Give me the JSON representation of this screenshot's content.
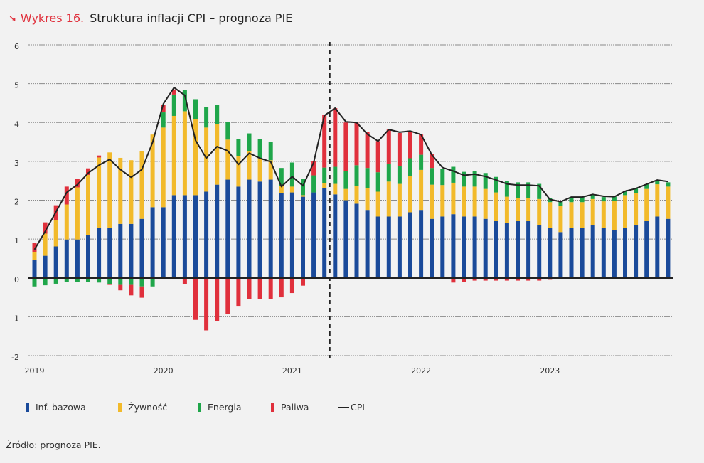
{
  "header": {
    "arrow_icon": "↘",
    "figure_number": "Wykres 16.",
    "title": "Struktura inflacji CPI – prognoza PIE"
  },
  "footer": {
    "source": "Źródło: prognoza PIE."
  },
  "colors": {
    "inf_bazowa": "#1a4a9a",
    "zywnosc": "#f2ba2b",
    "energia": "#1fa64a",
    "paliwa": "#e0303c",
    "cpi": "#222222",
    "accent": "#e0303c"
  },
  "legend": [
    {
      "key": "inf_bazowa",
      "label": "Inf. bazowa",
      "kind": "bar"
    },
    {
      "key": "zywnosc",
      "label": "Żywność",
      "kind": "bar"
    },
    {
      "key": "energia",
      "label": "Energia",
      "kind": "bar"
    },
    {
      "key": "paliwa",
      "label": "Paliwa",
      "kind": "bar"
    },
    {
      "key": "cpi",
      "label": "CPI",
      "kind": "line"
    }
  ],
  "chart_data": {
    "type": "bar",
    "stacked": true,
    "title": "Struktura inflacji CPI – prognoza PIE",
    "xlabel": "",
    "ylabel": "",
    "ylim": [
      -2,
      6
    ],
    "yticks": [
      6,
      5,
      4,
      3,
      2,
      1,
      0,
      -1,
      -2
    ],
    "grid": true,
    "legend_position": "bottom",
    "frequency": "monthly",
    "start": "2019-01",
    "xtick_labels": [
      {
        "index": 0,
        "label": "2019"
      },
      {
        "index": 12,
        "label": "2020"
      },
      {
        "index": 24,
        "label": "2021"
      },
      {
        "index": 36,
        "label": "2022"
      },
      {
        "index": 48,
        "label": "2023"
      }
    ],
    "forecast_start_after_index": 27,
    "forecast_marker": "dashed vertical line",
    "series": [
      {
        "name": "Inf. bazowa",
        "key": "inf_bazowa",
        "values": [
          0.46,
          0.57,
          0.81,
          0.99,
          0.99,
          1.1,
          1.29,
          1.28,
          1.39,
          1.39,
          1.52,
          1.82,
          1.82,
          2.13,
          2.13,
          2.13,
          2.22,
          2.4,
          2.53,
          2.35,
          2.53,
          2.48,
          2.53,
          2.18,
          2.2,
          2.09,
          2.2,
          2.31,
          2.15,
          2.0,
          1.91,
          1.75,
          1.58,
          1.58,
          1.58,
          1.69,
          1.75,
          1.52,
          1.58,
          1.64,
          1.58,
          1.58,
          1.52,
          1.46,
          1.41,
          1.46,
          1.46,
          1.35,
          1.29,
          1.18,
          1.29,
          1.29,
          1.35,
          1.29,
          1.23,
          1.29,
          1.35,
          1.46,
          1.58,
          1.52
        ]
      },
      {
        "name": "Żywność",
        "key": "zywnosc",
        "values": [
          0.2,
          0.57,
          0.68,
          0.9,
          1.34,
          1.55,
          1.81,
          1.95,
          1.7,
          1.64,
          1.75,
          1.87,
          2.05,
          2.04,
          2.16,
          1.96,
          1.65,
          1.55,
          1.03,
          0.79,
          0.74,
          0.6,
          0.5,
          0.19,
          0.15,
          0.04,
          0.0,
          0.13,
          0.27,
          0.29,
          0.46,
          0.56,
          0.64,
          0.9,
          0.84,
          0.94,
          1.03,
          0.88,
          0.81,
          0.81,
          0.77,
          0.77,
          0.77,
          0.74,
          0.68,
          0.6,
          0.6,
          0.68,
          0.66,
          0.67,
          0.66,
          0.66,
          0.68,
          0.68,
          0.76,
          0.84,
          0.83,
          0.83,
          0.83,
          0.83
        ]
      },
      {
        "name": "Energia",
        "key": "energia",
        "values": [
          -0.22,
          -0.19,
          -0.15,
          -0.1,
          -0.1,
          -0.11,
          -0.12,
          -0.16,
          -0.18,
          -0.18,
          -0.22,
          -0.22,
          0.39,
          0.55,
          0.55,
          0.51,
          0.52,
          0.51,
          0.46,
          0.44,
          0.45,
          0.5,
          0.47,
          0.46,
          0.62,
          0.42,
          0.44,
          0.4,
          0.44,
          0.46,
          0.53,
          0.52,
          0.5,
          0.46,
          0.46,
          0.45,
          0.39,
          0.43,
          0.42,
          0.41,
          0.38,
          0.4,
          0.41,
          0.4,
          0.4,
          0.4,
          0.4,
          0.39,
          0.11,
          0.11,
          0.13,
          0.13,
          0.12,
          0.11,
          0.1,
          0.11,
          0.12,
          0.12,
          0.1,
          0.11
        ]
      },
      {
        "name": "Paliwa",
        "key": "paliwa",
        "values": [
          0.24,
          0.29,
          0.38,
          0.46,
          0.22,
          0.17,
          0.05,
          -0.02,
          -0.14,
          -0.27,
          -0.29,
          0.0,
          0.2,
          0.13,
          -0.16,
          -1.08,
          -1.35,
          -1.12,
          -0.93,
          -0.72,
          -0.55,
          -0.55,
          -0.55,
          -0.5,
          -0.39,
          -0.2,
          0.37,
          1.36,
          1.51,
          1.25,
          1.1,
          0.92,
          0.8,
          0.88,
          0.85,
          0.68,
          0.52,
          0.36,
          0.0,
          -0.12,
          -0.1,
          -0.07,
          -0.07,
          -0.07,
          -0.07,
          -0.07,
          -0.07,
          -0.07,
          -0.03,
          0.0,
          0.0,
          0.0,
          0.0,
          0.0,
          0.0,
          0.0,
          0.0,
          0.0,
          0.0,
          0.0
        ]
      },
      {
        "name": "CPI",
        "key": "cpi",
        "type": "line",
        "values": [
          0.73,
          1.2,
          1.7,
          2.2,
          2.4,
          2.7,
          2.9,
          3.05,
          2.79,
          2.59,
          2.79,
          3.49,
          4.48,
          4.9,
          4.7,
          3.54,
          3.08,
          3.38,
          3.27,
          2.92,
          3.21,
          3.08,
          2.99,
          2.35,
          2.61,
          2.37,
          2.97,
          4.18,
          4.37,
          4.02,
          4.0,
          3.7,
          3.52,
          3.82,
          3.75,
          3.78,
          3.69,
          3.17,
          2.84,
          2.75,
          2.64,
          2.67,
          2.61,
          2.52,
          2.42,
          2.39,
          2.39,
          2.37,
          2.02,
          1.96,
          2.08,
          2.08,
          2.15,
          2.1,
          2.09,
          2.23,
          2.3,
          2.41,
          2.52,
          2.48
        ]
      }
    ]
  }
}
